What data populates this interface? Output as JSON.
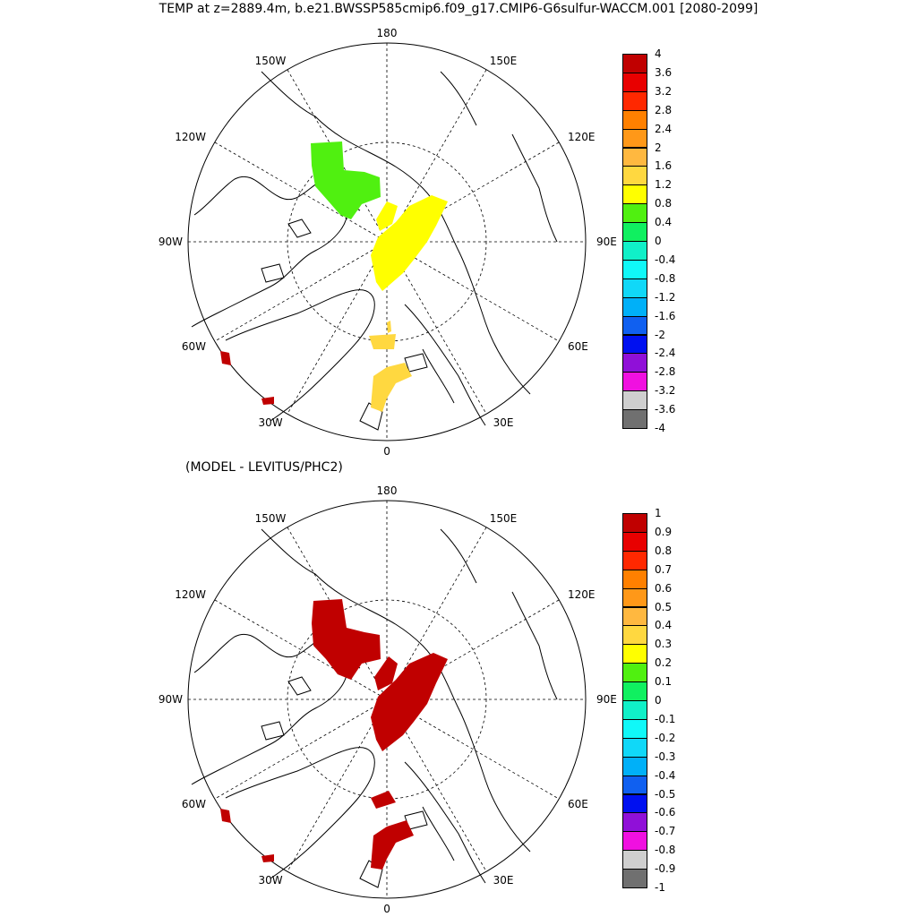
{
  "title": "TEMP at z=2889.4m, b.e21.BWSSP585cmip6.f09_g17.CMIP6-G6sulfur-WACCM.001 [2080-2099]",
  "subtitle": "(MODEL - LEVITUS/PHC2)",
  "longitude_labels": [
    "180",
    "150E",
    "120E",
    "90E",
    "60E",
    "30E",
    "0",
    "30W",
    "60W",
    "90W",
    "120W",
    "150W"
  ],
  "colors": {
    "palette": [
      "#707070",
      "#cfcfcf",
      "#f010e0",
      "#9010d8",
      "#0010f0",
      "#1060f0",
      "#00b0f8",
      "#10d8f8",
      "#10f8f8",
      "#10f0c8",
      "#10f060",
      "#50f010",
      "#ffff00",
      "#ffd840",
      "#ffb840",
      "#ff9818",
      "#ff8000",
      "#ff2800",
      "#e80000",
      "#c00000"
    ],
    "green_patch": "#50f010",
    "yellow_patch": "#ffff00",
    "gold_patch": "#ffd840",
    "red_patch": "#c00000"
  },
  "top_panel": {
    "colorbar_labels": [
      "4",
      "3.6",
      "3.2",
      "2.8",
      "2.4",
      "2",
      "1.6",
      "1.2",
      "0.8",
      "0.4",
      "0",
      "-0.4",
      "-0.8",
      "-1.2",
      "-1.6",
      "-2",
      "-2.4",
      "-2.8",
      "-3.2",
      "-3.6",
      "-4"
    ]
  },
  "bottom_panel": {
    "colorbar_labels": [
      "1",
      "0.9",
      "0.8",
      "0.7",
      "0.6",
      "0.5",
      "0.4",
      "0.3",
      "0.2",
      "0.1",
      "0",
      "-0.1",
      "-0.2",
      "-0.3",
      "-0.4",
      "-0.5",
      "-0.6",
      "-0.7",
      "-0.8",
      "-0.9",
      "-1"
    ]
  }
}
